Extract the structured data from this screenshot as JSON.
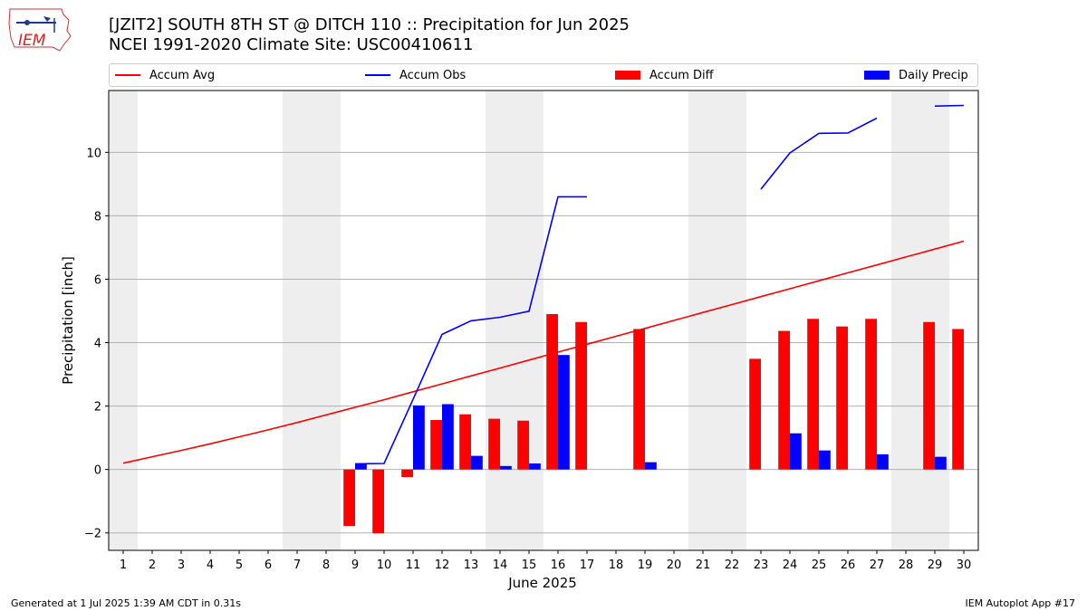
{
  "header": {
    "title_line1": "[JZIT2] SOUTH 8TH ST @ DITCH 110 :: Precipitation for Jun 2025",
    "title_line2": "NCEI 1991-2020 Climate Site: USC00410611"
  },
  "logo": {
    "text": "IEM"
  },
  "footer": {
    "generated": "Generated at 1 Jul 2025 1:39 AM CDT in 0.31s",
    "app": "IEM Autoplot App #17"
  },
  "colors": {
    "avg": "#ff0000",
    "obs": "#0000ff",
    "diff": "#ff0000",
    "daily": "#0000ff",
    "weekend": "#eeeeee",
    "grid": "#b0b0b0"
  },
  "chart_data": {
    "type": "bar",
    "xlabel": "June 2025",
    "ylabel": "Precipitation [inch]",
    "xlim": [
      0.5,
      30.5
    ],
    "ylim": [
      -2.55,
      11.95
    ],
    "yticks": [
      -2,
      0,
      2,
      4,
      6,
      8,
      10
    ],
    "grid": "y",
    "legend_placement": "top",
    "legend": [
      "Accum Avg",
      "Accum Obs",
      "Accum Diff",
      "Daily Precip"
    ],
    "weekend_days": [
      1,
      7,
      8,
      14,
      15,
      21,
      22,
      28,
      29
    ],
    "days": [
      1,
      2,
      3,
      4,
      5,
      6,
      7,
      8,
      9,
      10,
      11,
      12,
      13,
      14,
      15,
      16,
      17,
      18,
      19,
      20,
      21,
      22,
      23,
      24,
      25,
      26,
      27,
      28,
      29,
      30
    ],
    "series": [
      {
        "name": "Accum Avg",
        "kind": "line",
        "values": [
          0.2,
          0.4,
          0.6,
          0.81,
          1.03,
          1.25,
          1.48,
          1.72,
          1.96,
          2.2,
          2.45,
          2.7,
          2.95,
          3.2,
          3.45,
          3.7,
          3.95,
          4.2,
          4.45,
          4.7,
          4.95,
          5.2,
          5.45,
          5.7,
          5.95,
          6.2,
          6.45,
          6.7,
          6.95,
          7.2
        ]
      },
      {
        "name": "Accum Obs",
        "kind": "line",
        "values": [
          null,
          null,
          null,
          null,
          null,
          null,
          null,
          null,
          0.18,
          0.19,
          2.21,
          4.26,
          4.69,
          4.8,
          4.99,
          8.6,
          8.6,
          null,
          null,
          null,
          null,
          null,
          8.84,
          9.98,
          10.6,
          10.61,
          11.08,
          null,
          11.46,
          11.48
        ]
      },
      {
        "name": "Accum Diff",
        "kind": "bar",
        "values": [
          null,
          null,
          null,
          null,
          null,
          null,
          null,
          null,
          -1.78,
          -2.01,
          -0.24,
          1.56,
          1.74,
          1.6,
          1.54,
          4.9,
          4.65,
          null,
          4.43,
          null,
          null,
          null,
          3.49,
          4.37,
          4.75,
          4.51,
          4.75,
          null,
          4.65,
          4.43
        ]
      },
      {
        "name": "Daily Precip",
        "kind": "bar",
        "values": [
          null,
          null,
          null,
          null,
          null,
          null,
          null,
          null,
          0.18,
          null,
          2.02,
          2.06,
          0.43,
          0.11,
          0.19,
          3.61,
          null,
          null,
          0.23,
          null,
          null,
          null,
          null,
          1.14,
          0.6,
          null,
          0.48,
          null,
          0.4,
          null
        ]
      }
    ]
  }
}
